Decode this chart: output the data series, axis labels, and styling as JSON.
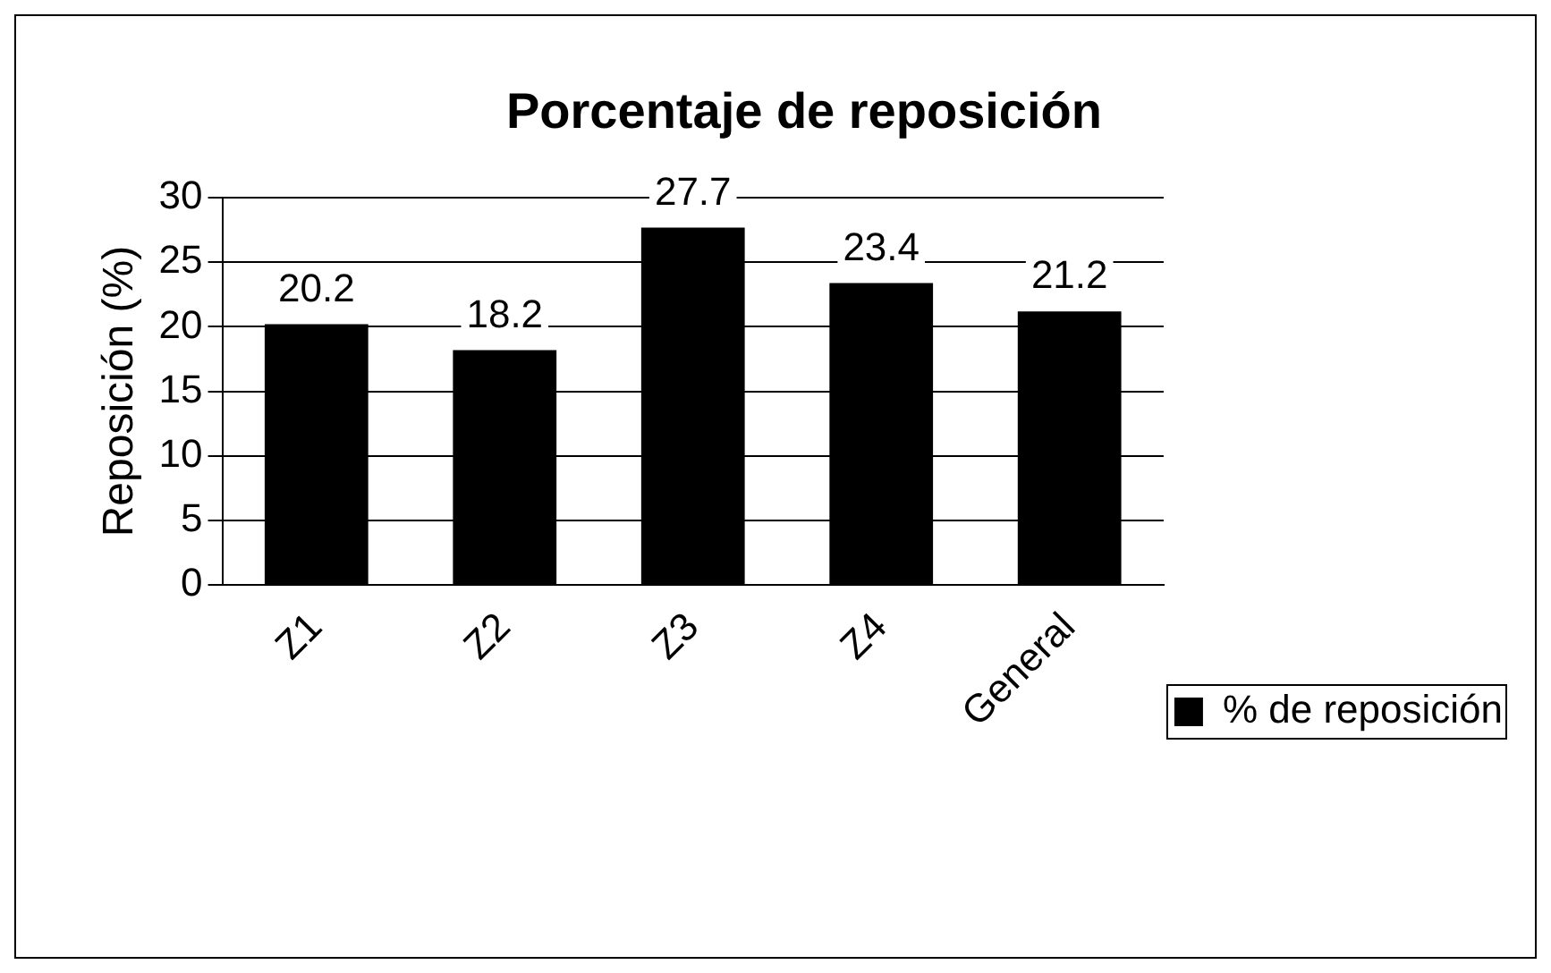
{
  "chart_data": {
    "type": "bar",
    "title": "Porcentaje de reposición",
    "ylabel": "Reposición (%)",
    "categories": [
      "Z1",
      "Z2",
      "Z3",
      "Z4",
      "General"
    ],
    "series": [
      {
        "name": "% de reposición",
        "color": "#000000",
        "values": [
          20.2,
          18.2,
          27.7,
          23.4,
          21.2
        ]
      }
    ],
    "ylim": [
      0,
      30
    ],
    "yticks": [
      0,
      5,
      10,
      15,
      20,
      25,
      30
    ],
    "grid": "y",
    "legend": "right",
    "data_labels": true
  }
}
